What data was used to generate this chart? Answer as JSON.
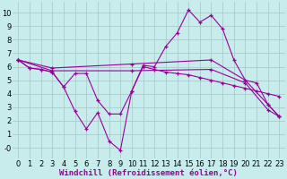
{
  "background_color": "#c8ecec",
  "grid_color": "#a8cccc",
  "line_color": "#990099",
  "xlim": [
    -0.5,
    23.5
  ],
  "ylim": [
    -0.8,
    10.8
  ],
  "xlabel": "Windchill (Refroidissement éolien,°C)",
  "xticks": [
    0,
    1,
    2,
    3,
    4,
    5,
    6,
    7,
    8,
    9,
    10,
    11,
    12,
    13,
    14,
    15,
    16,
    17,
    18,
    19,
    20,
    21,
    22,
    23
  ],
  "yticks": [
    0,
    1,
    2,
    3,
    4,
    5,
    6,
    7,
    8,
    9,
    10
  ],
  "ytick_labels": [
    "-0",
    "1",
    "2",
    "3",
    "4",
    "5",
    "6",
    "7",
    "8",
    "9",
    "10"
  ],
  "tick_fontsize": 6,
  "axis_fontsize": 6.5,
  "s1_x": [
    0,
    1,
    2,
    3,
    4,
    5,
    6,
    7,
    8,
    9,
    10,
    11,
    12,
    13,
    14,
    15,
    16,
    17,
    18,
    19,
    20,
    21,
    22,
    23
  ],
  "s1_y": [
    6.5,
    5.9,
    5.8,
    5.6,
    4.5,
    2.7,
    1.4,
    2.6,
    0.5,
    -0.2,
    4.2,
    6.1,
    6.0,
    7.5,
    8.5,
    10.2,
    9.3,
    9.8,
    8.8,
    6.5,
    5.0,
    4.8,
    3.2,
    2.3
  ],
  "s2_x": [
    0,
    1,
    2,
    3,
    4,
    5,
    6,
    7,
    8,
    9,
    10,
    11,
    12,
    13,
    14,
    15,
    16,
    17,
    18,
    19,
    20,
    21,
    22,
    23
  ],
  "s2_y": [
    6.5,
    5.9,
    5.8,
    5.6,
    4.5,
    5.5,
    5.5,
    3.5,
    2.5,
    2.5,
    4.2,
    6.0,
    5.8,
    5.6,
    5.5,
    5.4,
    5.2,
    5.0,
    4.8,
    4.6,
    4.4,
    4.2,
    4.0,
    3.8
  ],
  "s3_x": [
    0,
    3,
    10,
    17,
    20,
    22,
    23
  ],
  "s3_y": [
    6.5,
    5.9,
    6.2,
    6.5,
    5.0,
    3.2,
    2.3
  ],
  "s4_x": [
    0,
    3,
    10,
    17,
    20,
    22,
    23
  ],
  "s4_y": [
    6.5,
    5.7,
    5.7,
    5.8,
    4.8,
    2.8,
    2.3
  ]
}
